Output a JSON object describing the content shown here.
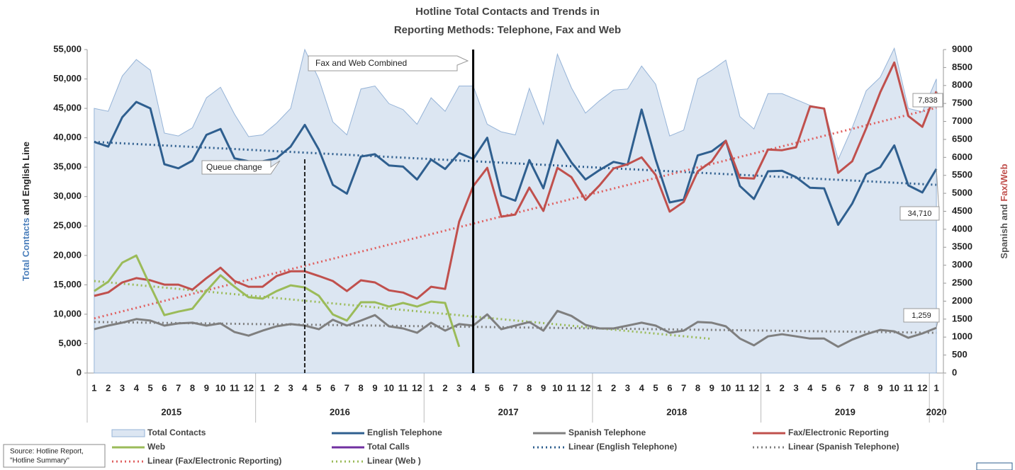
{
  "chart_data": {
    "type": "line",
    "title": [
      "Hotline Total Contacts and Trends in",
      "Reporting Methods: Telephone, Fax and Web"
    ],
    "y_label": [
      {
        "text": "Total Contacts",
        "color": "#4a7ebb"
      },
      {
        "text": " and ",
        "color": "#222222"
      },
      {
        "text": "English Line",
        "color": "#222222"
      }
    ],
    "y2_label": [
      {
        "text": "Spanish and ",
        "color": "#555555"
      },
      {
        "text": "Fax/Web",
        "color": "#c0504d"
      }
    ],
    "categories": [
      "1",
      "2",
      "3",
      "4",
      "5",
      "6",
      "7",
      "8",
      "9",
      "10",
      "11",
      "12",
      "1",
      "2",
      "3",
      "4",
      "5",
      "6",
      "7",
      "8",
      "9",
      "10",
      "11",
      "12",
      "1",
      "2",
      "3",
      "4",
      "5",
      "6",
      "7",
      "8",
      "9",
      "10",
      "11",
      "12",
      "1",
      "2",
      "3",
      "4",
      "5",
      "6",
      "7",
      "8",
      "9",
      "10",
      "11",
      "12",
      "1",
      "2",
      "3",
      "4",
      "5",
      "6",
      "7",
      "8",
      "9",
      "10",
      "11",
      "12",
      "1"
    ],
    "year_groups": [
      {
        "label": "2015",
        "span": 12
      },
      {
        "label": "2016",
        "span": 12
      },
      {
        "label": "2017",
        "span": 12
      },
      {
        "label": "2018",
        "span": 12
      },
      {
        "label": "2019",
        "span": 12
      },
      {
        "label": "2020",
        "span": 1
      }
    ],
    "ylim": [
      0,
      55000
    ],
    "yticks": [
      {
        "value": 0,
        "label": "0"
      },
      {
        "value": 5000,
        "label": "5,000"
      },
      {
        "value": 10000,
        "label": "10,000"
      },
      {
        "value": 15000,
        "label": "15,000"
      },
      {
        "value": 20000,
        "label": "20,000"
      },
      {
        "value": 25000,
        "label": "25,000"
      },
      {
        "value": 30000,
        "label": "30,000"
      },
      {
        "value": 35000,
        "label": "35,000"
      },
      {
        "value": 40000,
        "label": "40,000"
      },
      {
        "value": 45000,
        "label": "45,000"
      },
      {
        "value": 50000,
        "label": "50,000"
      },
      {
        "value": 55000,
        "label": "55,000"
      }
    ],
    "y2lim": [
      0,
      9000
    ],
    "y2ticks": [
      0,
      500,
      1000,
      1500,
      2000,
      2500,
      3000,
      3500,
      4000,
      4500,
      5000,
      5500,
      6000,
      6500,
      7000,
      7500,
      8000,
      8500,
      9000
    ],
    "series": [
      {
        "name": "Total Contacts",
        "kind": "area",
        "color": "#dce6f2",
        "stroke": "#95b3d7",
        "values": [
          45000,
          44500,
          50500,
          53300,
          51500,
          40800,
          40300,
          41700,
          46800,
          48600,
          44000,
          40200,
          40500,
          42500,
          45000,
          55000,
          50000,
          42700,
          40500,
          48300,
          48800,
          45800,
          44800,
          42300,
          46800,
          44500,
          48800,
          48800,
          42300,
          41000,
          40500,
          48400,
          42300,
          54200,
          48500,
          44200,
          46300,
          48100,
          48300,
          52200,
          49100,
          40300,
          41300,
          50000,
          51500,
          53200,
          43600,
          41500,
          47500,
          47500,
          46500,
          45500,
          45000,
          36300,
          41700,
          48000,
          50300,
          55200,
          45000,
          44400,
          50000
        ]
      },
      {
        "name": "English Telephone",
        "kind": "line",
        "color": "#2f5f8f",
        "values": [
          39300,
          38500,
          43500,
          46100,
          45000,
          35500,
          34800,
          36100,
          40500,
          41500,
          36500,
          36000,
          36000,
          36500,
          38500,
          42200,
          38000,
          32000,
          30500,
          36800,
          37200,
          35300,
          35100,
          32900,
          36300,
          34700,
          37400,
          36400,
          40000,
          30200,
          29300,
          36200,
          31400,
          39600,
          35800,
          32900,
          34500,
          35900,
          35400,
          44800,
          36300,
          29000,
          29500,
          37000,
          37700,
          39500,
          31800,
          29600,
          34300,
          34400,
          33300,
          31500,
          31400,
          25200,
          28800,
          33800,
          35000,
          38700,
          31900,
          30700,
          34710
        ],
        "value_labels": {
          "60": "34,710"
        }
      },
      {
        "name": "Spanish Telephone",
        "kind": "line",
        "axis": "y2",
        "color": "#7f7f7f",
        "values": [
          1220,
          1320,
          1400,
          1500,
          1460,
          1320,
          1380,
          1400,
          1320,
          1380,
          1140,
          1040,
          1180,
          1300,
          1360,
          1320,
          1220,
          1480,
          1320,
          1460,
          1610,
          1300,
          1240,
          1120,
          1400,
          1180,
          1360,
          1320,
          1630,
          1220,
          1320,
          1420,
          1180,
          1730,
          1590,
          1340,
          1240,
          1240,
          1320,
          1400,
          1320,
          1120,
          1180,
          1420,
          1400,
          1300,
          960,
          770,
          1020,
          1080,
          1020,
          960,
          960,
          730,
          930,
          1080,
          1200,
          1160,
          980,
          1100,
          1259
        ],
        "value_labels": {
          "60": "1,259"
        }
      },
      {
        "name": "Fax/Electronic Reporting",
        "kind": "line",
        "axis": "y2",
        "color": "#c0504d",
        "values": [
          2146,
          2244,
          2520,
          2640,
          2580,
          2460,
          2460,
          2320,
          2640,
          2930,
          2560,
          2400,
          2400,
          2700,
          2830,
          2830,
          2700,
          2560,
          2280,
          2580,
          2520,
          2300,
          2240,
          2070,
          2400,
          2340,
          4210,
          5200,
          5710,
          4350,
          4410,
          5160,
          4510,
          5710,
          5450,
          4820,
          5220,
          5690,
          5810,
          6000,
          5510,
          4490,
          4760,
          5610,
          5890,
          6460,
          5430,
          5410,
          6220,
          6200,
          6280,
          7420,
          7360,
          5570,
          5890,
          6810,
          7810,
          8640,
          7150,
          6850,
          7838
        ],
        "value_labels": {
          "60": "7,838"
        }
      },
      {
        "name": "Web",
        "kind": "line",
        "axis": "y2",
        "color": "#9bbb59",
        "values": [
          2280,
          2540,
          3070,
          3270,
          2420,
          1610,
          1710,
          1790,
          2280,
          2720,
          2400,
          2110,
          2070,
          2280,
          2440,
          2380,
          2150,
          1630,
          1460,
          1970,
          1970,
          1850,
          1950,
          1850,
          1990,
          1950,
          730,
          null,
          null,
          null,
          null,
          null,
          null,
          null,
          null,
          null,
          null,
          null,
          null,
          null,
          null,
          null,
          null,
          null,
          null,
          null,
          null,
          null,
          null,
          null,
          null,
          null,
          null,
          null,
          null,
          null,
          null,
          null,
          null,
          null,
          null
        ]
      },
      {
        "name": "Total Calls",
        "kind": "line",
        "color": "#7030a0",
        "values": [
          null,
          null,
          null,
          null,
          null,
          null,
          null,
          null,
          null,
          null,
          null,
          null,
          null,
          null,
          null,
          null,
          null,
          null,
          null,
          null,
          null,
          null,
          null,
          null,
          null,
          null,
          null,
          null,
          null,
          null,
          null,
          null,
          null,
          null,
          null,
          null,
          null,
          null,
          null,
          null,
          null,
          null,
          null,
          null,
          null,
          null,
          null,
          null,
          null,
          null,
          null,
          null,
          null,
          null,
          null,
          null,
          null,
          null,
          null,
          null,
          null
        ]
      }
    ],
    "trendlines": [
      {
        "name": "Linear (English Telephone)",
        "color": "#2f5f8f",
        "x": [
          1,
          61
        ],
        "values": [
          39300,
          32000
        ]
      },
      {
        "name": "Linear (Spanish Telephone)",
        "axis": "y2",
        "color": "#7f7f7f",
        "x": [
          1,
          61
        ],
        "values": [
          1420,
          1120
        ]
      },
      {
        "name": "Linear (Fax/Electronic Reporting)",
        "axis": "y2",
        "color": "#e06060",
        "x": [
          1,
          61
        ],
        "values": [
          1520,
          7380
        ]
      },
      {
        "name": "Linear (Web )",
        "axis": "y2",
        "color": "#9bbb59",
        "x": [
          1,
          45
        ],
        "values": [
          2560,
          950
        ]
      }
    ],
    "markers": [
      {
        "index": 15,
        "style": "dashed",
        "text": "Queue change"
      },
      {
        "index": 27,
        "style": "solid",
        "text": "Fax and Web Combined"
      }
    ],
    "source": [
      "Source: Hotline Report,",
      "\"Hotline Summary\""
    ]
  }
}
